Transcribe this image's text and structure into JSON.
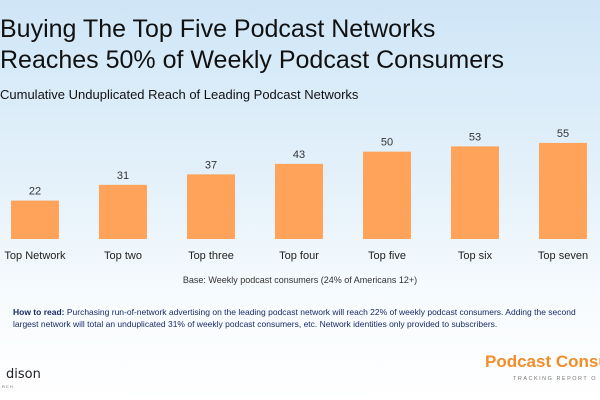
{
  "header": {
    "title_line1": "Buying The Top Five Podcast Networks",
    "title_line2": "Reaches 50% of Weekly Podcast Consumers",
    "subtitle": "Cumulative Unduplicated Reach of Leading Podcast Networks"
  },
  "chart_data": {
    "type": "bar",
    "title": "Cumulative Unduplicated Reach of Leading Podcast Networks",
    "categories": [
      "Top Network",
      "Top two",
      "Top three",
      "Top four",
      "Top five",
      "Top six",
      "Top seven"
    ],
    "values": [
      22,
      31,
      37,
      43,
      50,
      53,
      55
    ],
    "series": [
      {
        "values": [
          22,
          31,
          37,
          43,
          50,
          53,
          55
        ]
      }
    ],
    "xlabel": "",
    "ylabel": "",
    "ylim": [
      0,
      55
    ],
    "grid": false,
    "bar_color": "#ffa35a",
    "data_labels": true
  },
  "notes": {
    "base": "Base: Weekly podcast consumers (24% of Americans 12+)",
    "how_to_read_label": "How to read:",
    "how_to_read_text": " Purchasing run-of-network advertising on the leading podcast network will reach 22% of weekly podcast consumers. Adding the second largest network will total an unduplicated 31% of weekly podcast consumers, etc. Network identities only provided to subscribers."
  },
  "logos": {
    "edison_name": "dison",
    "edison_sub": "RCH",
    "podcast_consumer_name": "Podcast Consum",
    "podcast_consumer_sub": "TRACKING REPORT O"
  },
  "colors": {
    "accent": "#ffa35a",
    "brand_orange": "#f28d2a",
    "how_to_read_text": "#1a2a66"
  }
}
